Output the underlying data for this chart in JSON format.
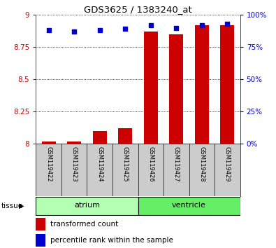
{
  "title": "GDS3625 / 1383240_at",
  "samples": [
    "GSM119422",
    "GSM119423",
    "GSM119424",
    "GSM119425",
    "GSM119426",
    "GSM119427",
    "GSM119428",
    "GSM119429"
  ],
  "transformed_count": [
    8.02,
    8.02,
    8.1,
    8.12,
    8.87,
    8.85,
    8.92,
    8.92
  ],
  "percentile_rank": [
    88,
    87,
    88,
    89,
    92,
    90,
    92,
    93
  ],
  "bar_bottom": 8.0,
  "ylim_left": [
    8.0,
    9.0
  ],
  "ylim_right": [
    0,
    100
  ],
  "yticks_left": [
    8.0,
    8.25,
    8.5,
    8.75,
    9.0
  ],
  "yticks_right": [
    0,
    25,
    50,
    75,
    100
  ],
  "ytick_labels_left": [
    "8",
    "8.25",
    "8.5",
    "8.75",
    "9"
  ],
  "ytick_labels_right": [
    "0%",
    "25%",
    "50%",
    "75%",
    "100%"
  ],
  "groups": [
    {
      "name": "atrium",
      "start": 0,
      "end": 3,
      "color": "#b3ffb3"
    },
    {
      "name": "ventricle",
      "start": 4,
      "end": 7,
      "color": "#66ee66"
    }
  ],
  "bar_color": "#cc0000",
  "dot_color": "#0000cc",
  "left_tick_color": "#cc0000",
  "right_tick_color": "#0000cc",
  "grid_color": "#000000",
  "tissue_label": "tissue",
  "legend_items": [
    {
      "color": "#cc0000",
      "label": "transformed count"
    },
    {
      "color": "#0000cc",
      "label": "percentile rank within the sample"
    }
  ],
  "bar_width": 0.55,
  "dot_size": 18,
  "background_color": "#ffffff"
}
